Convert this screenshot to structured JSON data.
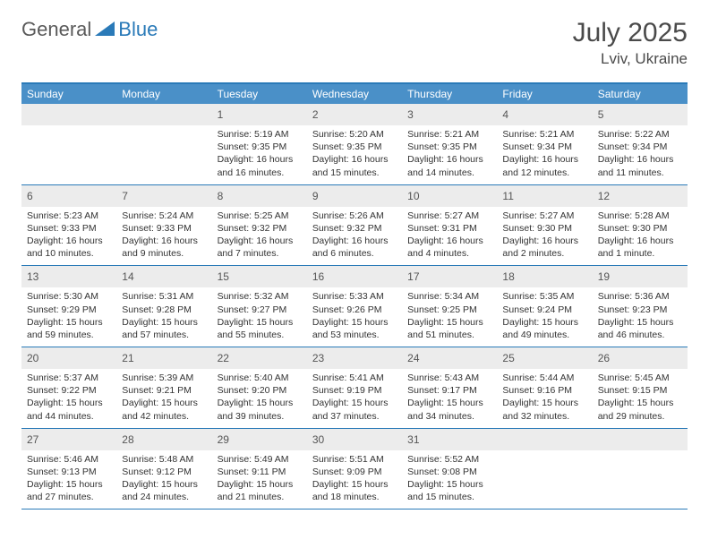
{
  "brand": {
    "part1": "General",
    "part2": "Blue"
  },
  "title": "July 2025",
  "location": "Lviv, Ukraine",
  "colors": {
    "header_bar": "#4a90c8",
    "accent": "#2a7ab8",
    "daynum_bg": "#ececec",
    "text": "#333333",
    "brand_gray": "#5a5a5a"
  },
  "weekdays": [
    "Sunday",
    "Monday",
    "Tuesday",
    "Wednesday",
    "Thursday",
    "Friday",
    "Saturday"
  ],
  "weeks": [
    [
      null,
      null,
      {
        "n": "1",
        "sunrise": "5:19 AM",
        "sunset": "9:35 PM",
        "daylight": "16 hours and 16 minutes."
      },
      {
        "n": "2",
        "sunrise": "5:20 AM",
        "sunset": "9:35 PM",
        "daylight": "16 hours and 15 minutes."
      },
      {
        "n": "3",
        "sunrise": "5:21 AM",
        "sunset": "9:35 PM",
        "daylight": "16 hours and 14 minutes."
      },
      {
        "n": "4",
        "sunrise": "5:21 AM",
        "sunset": "9:34 PM",
        "daylight": "16 hours and 12 minutes."
      },
      {
        "n": "5",
        "sunrise": "5:22 AM",
        "sunset": "9:34 PM",
        "daylight": "16 hours and 11 minutes."
      }
    ],
    [
      {
        "n": "6",
        "sunrise": "5:23 AM",
        "sunset": "9:33 PM",
        "daylight": "16 hours and 10 minutes."
      },
      {
        "n": "7",
        "sunrise": "5:24 AM",
        "sunset": "9:33 PM",
        "daylight": "16 hours and 9 minutes."
      },
      {
        "n": "8",
        "sunrise": "5:25 AM",
        "sunset": "9:32 PM",
        "daylight": "16 hours and 7 minutes."
      },
      {
        "n": "9",
        "sunrise": "5:26 AM",
        "sunset": "9:32 PM",
        "daylight": "16 hours and 6 minutes."
      },
      {
        "n": "10",
        "sunrise": "5:27 AM",
        "sunset": "9:31 PM",
        "daylight": "16 hours and 4 minutes."
      },
      {
        "n": "11",
        "sunrise": "5:27 AM",
        "sunset": "9:30 PM",
        "daylight": "16 hours and 2 minutes."
      },
      {
        "n": "12",
        "sunrise": "5:28 AM",
        "sunset": "9:30 PM",
        "daylight": "16 hours and 1 minute."
      }
    ],
    [
      {
        "n": "13",
        "sunrise": "5:30 AM",
        "sunset": "9:29 PM",
        "daylight": "15 hours and 59 minutes."
      },
      {
        "n": "14",
        "sunrise": "5:31 AM",
        "sunset": "9:28 PM",
        "daylight": "15 hours and 57 minutes."
      },
      {
        "n": "15",
        "sunrise": "5:32 AM",
        "sunset": "9:27 PM",
        "daylight": "15 hours and 55 minutes."
      },
      {
        "n": "16",
        "sunrise": "5:33 AM",
        "sunset": "9:26 PM",
        "daylight": "15 hours and 53 minutes."
      },
      {
        "n": "17",
        "sunrise": "5:34 AM",
        "sunset": "9:25 PM",
        "daylight": "15 hours and 51 minutes."
      },
      {
        "n": "18",
        "sunrise": "5:35 AM",
        "sunset": "9:24 PM",
        "daylight": "15 hours and 49 minutes."
      },
      {
        "n": "19",
        "sunrise": "5:36 AM",
        "sunset": "9:23 PM",
        "daylight": "15 hours and 46 minutes."
      }
    ],
    [
      {
        "n": "20",
        "sunrise": "5:37 AM",
        "sunset": "9:22 PM",
        "daylight": "15 hours and 44 minutes."
      },
      {
        "n": "21",
        "sunrise": "5:39 AM",
        "sunset": "9:21 PM",
        "daylight": "15 hours and 42 minutes."
      },
      {
        "n": "22",
        "sunrise": "5:40 AM",
        "sunset": "9:20 PM",
        "daylight": "15 hours and 39 minutes."
      },
      {
        "n": "23",
        "sunrise": "5:41 AM",
        "sunset": "9:19 PM",
        "daylight": "15 hours and 37 minutes."
      },
      {
        "n": "24",
        "sunrise": "5:43 AM",
        "sunset": "9:17 PM",
        "daylight": "15 hours and 34 minutes."
      },
      {
        "n": "25",
        "sunrise": "5:44 AM",
        "sunset": "9:16 PM",
        "daylight": "15 hours and 32 minutes."
      },
      {
        "n": "26",
        "sunrise": "5:45 AM",
        "sunset": "9:15 PM",
        "daylight": "15 hours and 29 minutes."
      }
    ],
    [
      {
        "n": "27",
        "sunrise": "5:46 AM",
        "sunset": "9:13 PM",
        "daylight": "15 hours and 27 minutes."
      },
      {
        "n": "28",
        "sunrise": "5:48 AM",
        "sunset": "9:12 PM",
        "daylight": "15 hours and 24 minutes."
      },
      {
        "n": "29",
        "sunrise": "5:49 AM",
        "sunset": "9:11 PM",
        "daylight": "15 hours and 21 minutes."
      },
      {
        "n": "30",
        "sunrise": "5:51 AM",
        "sunset": "9:09 PM",
        "daylight": "15 hours and 18 minutes."
      },
      {
        "n": "31",
        "sunrise": "5:52 AM",
        "sunset": "9:08 PM",
        "daylight": "15 hours and 15 minutes."
      },
      null,
      null
    ]
  ],
  "labels": {
    "sunrise": "Sunrise:",
    "sunset": "Sunset:",
    "daylight": "Daylight:"
  }
}
